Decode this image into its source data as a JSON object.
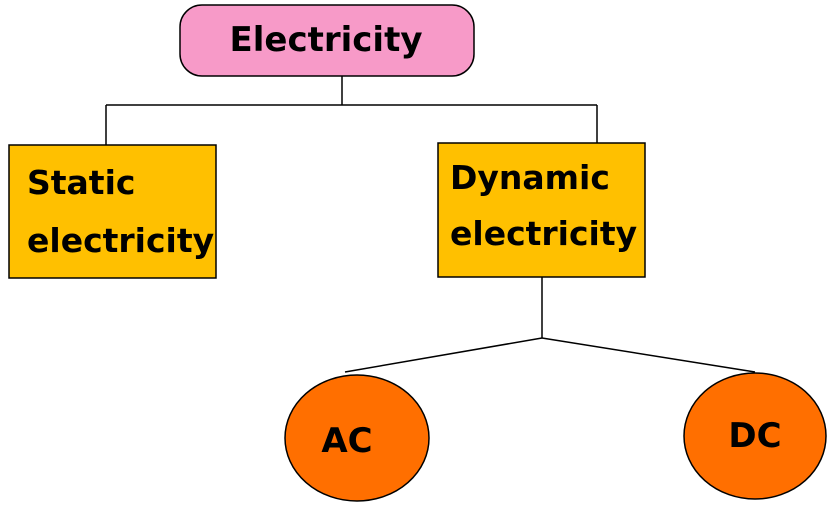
{
  "diagram": {
    "root": {
      "label": "Electricity",
      "fill": "#f79ac8"
    },
    "static": {
      "line1": "Static",
      "line2": "electricity",
      "fill": "#ffc000"
    },
    "dynamic": {
      "line1": "Dynamic",
      "line2": "electricity",
      "fill": "#ffc000"
    },
    "ac": {
      "label": "AC",
      "fill": "#ff6f00"
    },
    "dc": {
      "label": "DC",
      "fill": "#ff6f00"
    },
    "connector_color": "#000000"
  }
}
